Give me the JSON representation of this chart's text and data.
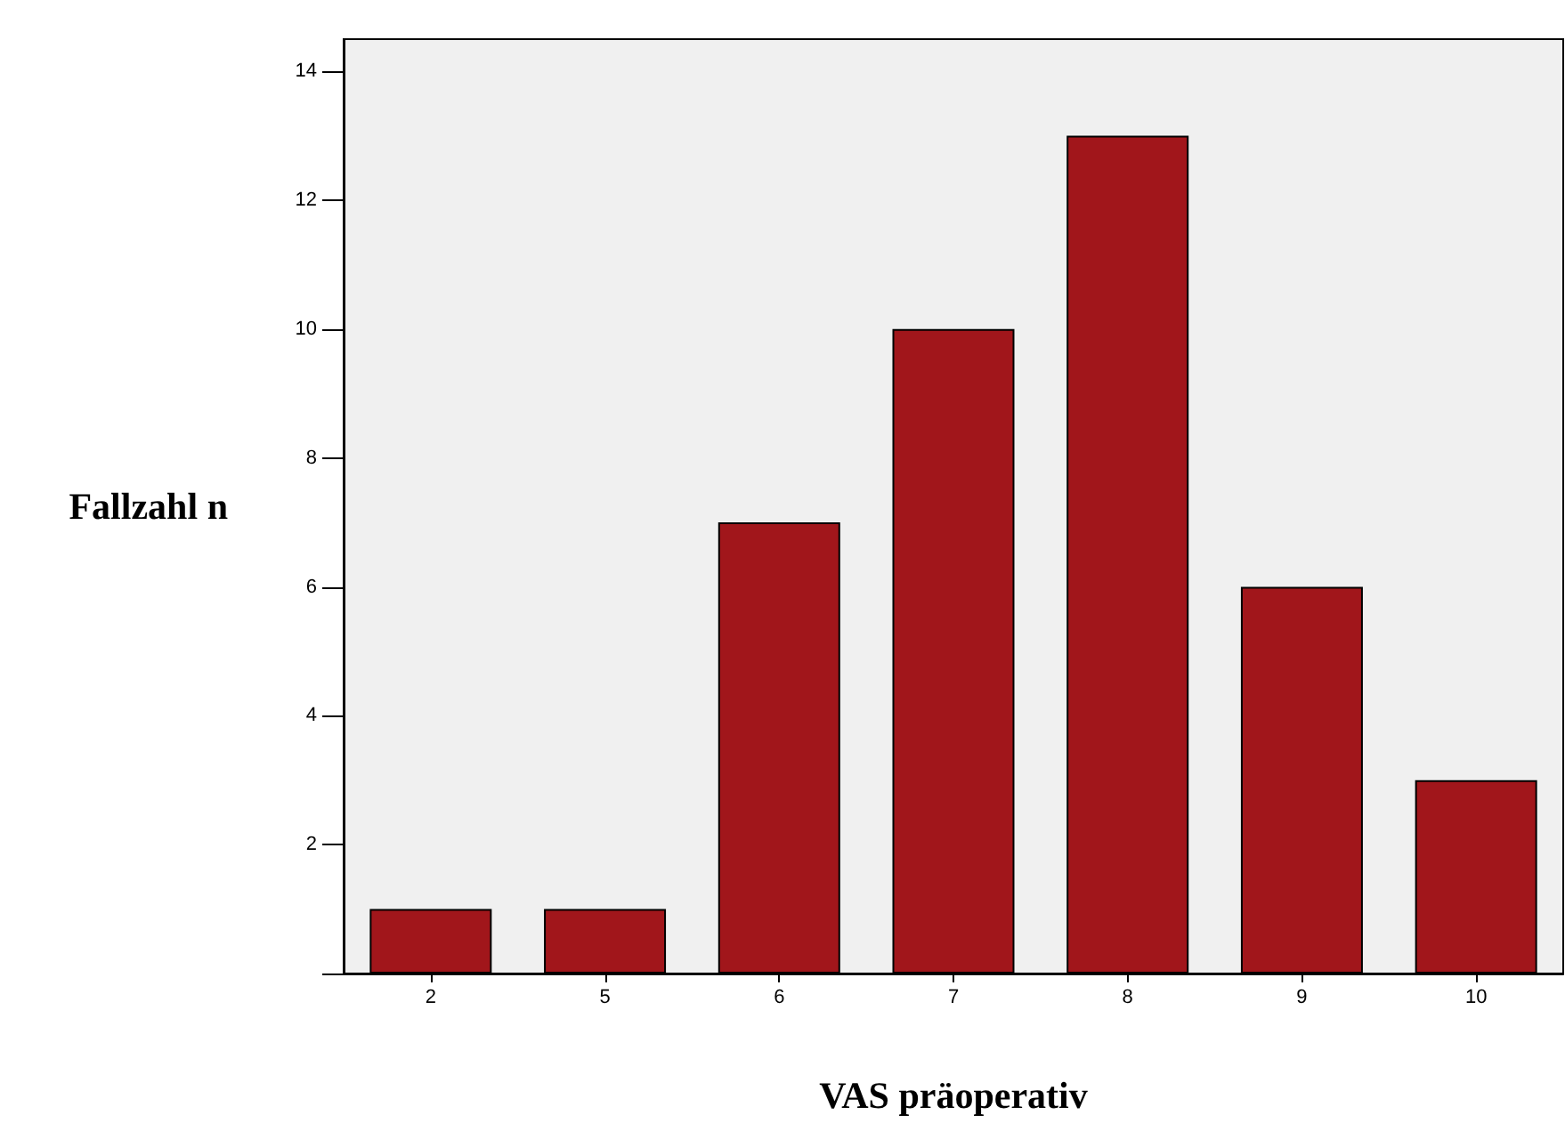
{
  "chart_data": {
    "type": "bar",
    "xlabel": "VAS präoperativ",
    "ylabel": "Fallzahl n",
    "categories": [
      "2",
      "5",
      "6",
      "7",
      "8",
      "9",
      "10"
    ],
    "values": [
      1,
      1,
      7,
      10,
      13,
      6,
      3
    ],
    "color": "#a1161b",
    "ylim": [
      0,
      14.5
    ],
    "yticks": [
      {
        "value": 0,
        "label": null
      },
      2,
      4,
      6,
      8,
      10,
      12,
      14
    ],
    "grid": false
  }
}
